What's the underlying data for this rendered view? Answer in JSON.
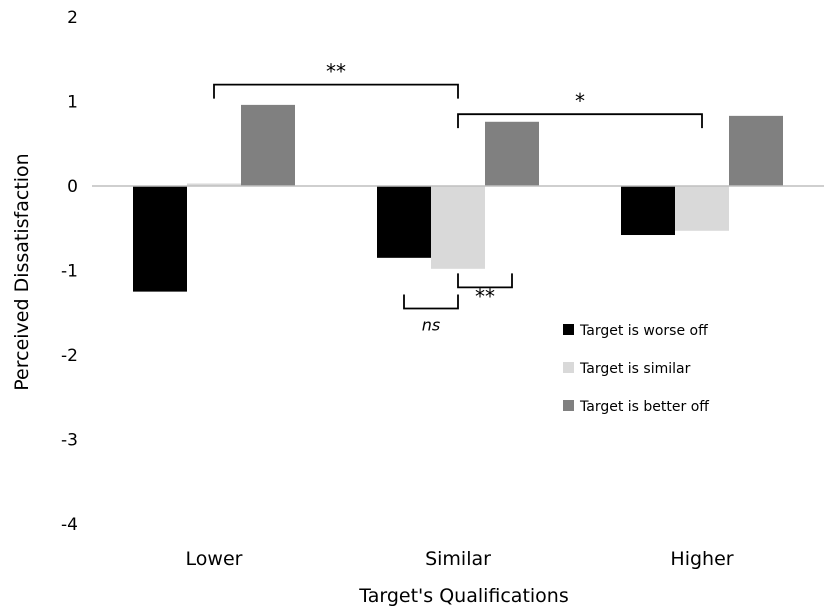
{
  "chart_data": {
    "type": "bar",
    "title": "",
    "xlabel": "Target's Qualifications",
    "ylabel": "Perceived Dissatisfaction",
    "categories": [
      "Lower",
      "Similar",
      "Higher"
    ],
    "ylim": [
      -4,
      2
    ],
    "yticks": [
      2,
      1,
      0,
      -1,
      -2,
      -3,
      -4
    ],
    "grid": false,
    "legend_position": "lower-right",
    "series": [
      {
        "name": "Target is worse off",
        "color": "#000000",
        "values": [
          -1.25,
          -0.85,
          -0.58
        ]
      },
      {
        "name": "Target is similar",
        "color": "#d9d9d9",
        "values": [
          0.03,
          -0.98,
          -0.53
        ]
      },
      {
        "name": "Target is better off",
        "color": "#808080",
        "values": [
          0.96,
          0.76,
          0.83
        ]
      }
    ],
    "annotations": [
      {
        "text": "**",
        "style": "normal",
        "between": [
          {
            "category": "Lower",
            "series": "Target is similar"
          },
          {
            "category": "Similar",
            "series": "Target is similar"
          }
        ],
        "side": "top",
        "level": 1.2
      },
      {
        "text": "*",
        "style": "normal",
        "between": [
          {
            "category": "Similar",
            "series": "Target is similar"
          },
          {
            "category": "Higher",
            "series": "Target is similar"
          }
        ],
        "side": "top",
        "level": 0.85
      },
      {
        "text": "ns",
        "style": "italic",
        "between": [
          {
            "category": "Similar",
            "series": "Target is worse off"
          },
          {
            "category": "Similar",
            "series": "Target is similar"
          }
        ],
        "side": "bottom",
        "level": -1.45
      },
      {
        "text": "**",
        "style": "italic",
        "between": [
          {
            "category": "Similar",
            "series": "Target is similar"
          },
          {
            "category": "Similar",
            "series": "Target is better off"
          }
        ],
        "side": "bottom",
        "level": -1.2
      }
    ]
  }
}
